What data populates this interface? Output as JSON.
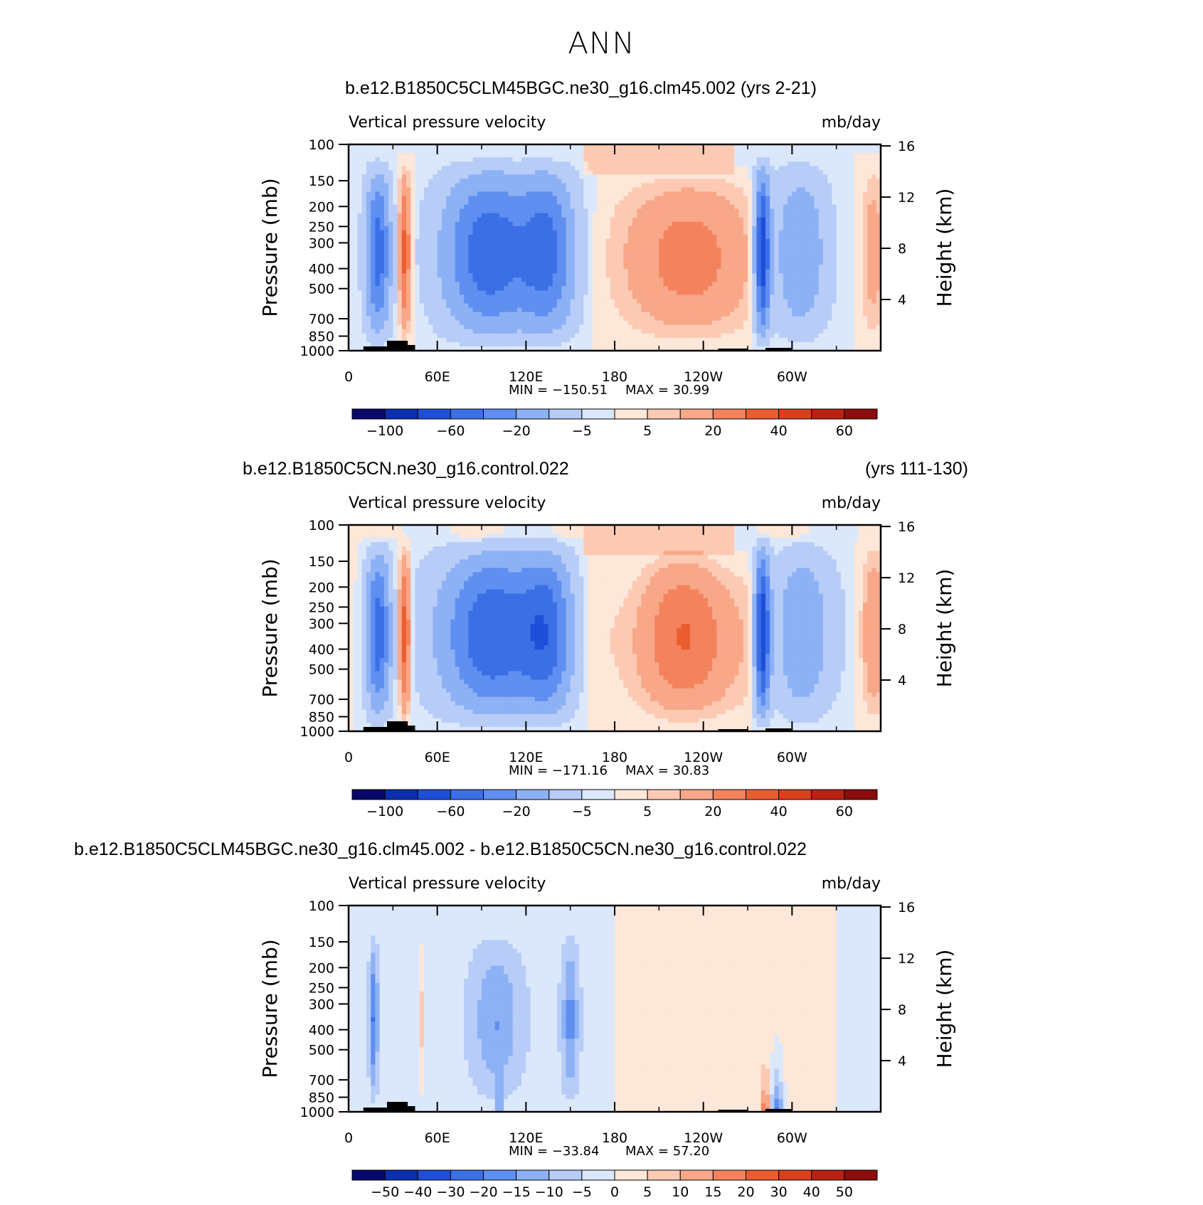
{
  "page_title": "ANN",
  "chart_data": [
    {
      "type": "heatmap",
      "case_title": "b.e12.B1850C5CLM45BGC.ne30_g16.clm45.002 (yrs 2-21)",
      "case_title_right": "",
      "variable": "Vertical pressure velocity",
      "units": "mb/day",
      "ylabel": "Pressure (mb)",
      "y2label": "Height (km)",
      "yticks": [
        "100",
        "150",
        "200",
        "250",
        "300",
        "400",
        "500",
        "700",
        "850",
        "1000"
      ],
      "y2ticks": [
        "16",
        "12",
        "8",
        "4"
      ],
      "xticks": [
        "0",
        "60E",
        "120E",
        "180",
        "120W",
        "60W"
      ],
      "xlim": [
        0,
        360
      ],
      "ylim": [
        1000,
        100
      ],
      "min_label": "MIN = −150.51",
      "max_label": "MAX =   30.99",
      "min_value": -150.51,
      "max_value": 30.99,
      "colorbar_labels": [
        "−100",
        "−60",
        "−20",
        "−5",
        "5",
        "20",
        "40",
        "60"
      ],
      "colorbar_colors": [
        "#08086b",
        "#0b2fb0",
        "#1f4fd8",
        "#3b6fe6",
        "#5f8ff0",
        "#8db1f5",
        "#b7cdf8",
        "#dbe8fc",
        "#fde7d8",
        "#fccab3",
        "#f8a789",
        "#f4835d",
        "#eb5d31",
        "#d9401c",
        "#b92212",
        "#8c0d0c"
      ],
      "field": "clm45"
    },
    {
      "type": "heatmap",
      "case_title": "b.e12.B1850C5CN.ne30_g16.control.022",
      "case_title_right": "(yrs 111-130)",
      "variable": "Vertical pressure velocity",
      "units": "mb/day",
      "ylabel": "Pressure (mb)",
      "y2label": "Height (km)",
      "yticks": [
        "100",
        "150",
        "200",
        "250",
        "300",
        "400",
        "500",
        "700",
        "850",
        "1000"
      ],
      "y2ticks": [
        "16",
        "12",
        "8",
        "4"
      ],
      "xticks": [
        "0",
        "60E",
        "120E",
        "180",
        "120W",
        "60W"
      ],
      "xlim": [
        0,
        360
      ],
      "ylim": [
        1000,
        100
      ],
      "min_label": "MIN = −171.16",
      "max_label": "MAX =   30.83",
      "min_value": -171.16,
      "max_value": 30.83,
      "colorbar_labels": [
        "−100",
        "−60",
        "−20",
        "−5",
        "5",
        "20",
        "40",
        "60"
      ],
      "colorbar_colors": [
        "#08086b",
        "#0b2fb0",
        "#1f4fd8",
        "#3b6fe6",
        "#5f8ff0",
        "#8db1f5",
        "#b7cdf8",
        "#dbe8fc",
        "#fde7d8",
        "#fccab3",
        "#f8a789",
        "#f4835d",
        "#eb5d31",
        "#d9401c",
        "#b92212",
        "#8c0d0c"
      ],
      "field": "control"
    },
    {
      "type": "heatmap",
      "case_title": "b.e12.B1850C5CLM45BGC.ne30_g16.clm45.002 - b.e12.B1850C5CN.ne30_g16.control.022",
      "case_title_right": "",
      "variable": "Vertical pressure velocity",
      "units": "mb/day",
      "ylabel": "Pressure (mb)",
      "y2label": "Height (km)",
      "yticks": [
        "100",
        "150",
        "200",
        "250",
        "300",
        "400",
        "500",
        "700",
        "850",
        "1000"
      ],
      "y2ticks": [
        "16",
        "12",
        "8",
        "4"
      ],
      "xticks": [
        "0",
        "60E",
        "120E",
        "180",
        "120W",
        "60W"
      ],
      "xlim": [
        0,
        360
      ],
      "ylim": [
        1000,
        100
      ],
      "min_label": "MIN = −33.84",
      "max_label": "MAX =   57.20",
      "min_value": -33.84,
      "max_value": 57.2,
      "colorbar_labels": [
        "−50",
        "−40",
        "−30",
        "−20",
        "−15",
        "−10",
        "−5",
        "0",
        "5",
        "10",
        "15",
        "20",
        "30",
        "40",
        "50"
      ],
      "colorbar_colors": [
        "#08086b",
        "#0b2fb0",
        "#1f4fd8",
        "#3b6fe6",
        "#5f8ff0",
        "#8db1f5",
        "#b7cdf8",
        "#dbe8fc",
        "#fde7d8",
        "#fccab3",
        "#f8a789",
        "#f4835d",
        "#eb5d31",
        "#d9401c",
        "#b92212",
        "#8c0d0c"
      ],
      "field": "diff"
    }
  ]
}
